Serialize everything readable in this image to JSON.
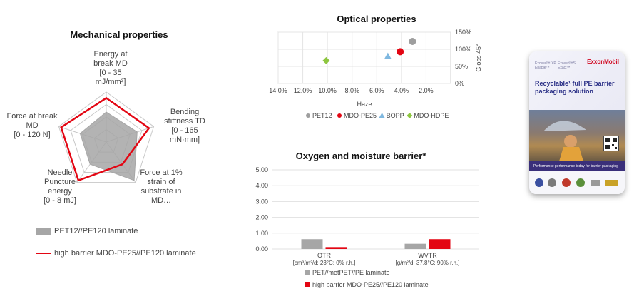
{
  "mechanical": {
    "title": "Mechanical properties",
    "axes": [
      "Energy at break MD [0 - 35 mJ/mm³]",
      "Bending stiffness TD [0 - 165 mN·mm]",
      "Force at 1% strain of substrate in MD...",
      "Needle Puncture energy [0 - 8 mJ]",
      "Force at break MD [0 - 120 N]"
    ],
    "axis_lines": [
      [
        "Energy at",
        "break MD",
        "[0 - 35",
        "mJ/mm³]"
      ],
      [
        "Bending",
        "stiffness TD",
        "[0 - 165",
        "mN·mm]"
      ],
      [
        "Force at 1%",
        "strain of",
        "substrate in",
        "MD…"
      ],
      [
        "Needle",
        "Puncture",
        "energy",
        "[0 - 8 mJ]"
      ],
      [
        "Force at break",
        "MD",
        "[0 - 120 N]"
      ]
    ],
    "legend": [
      "PET12//PE120 laminate",
      "high barrier MDO-PE25//PE120 laminate"
    ]
  },
  "optical": {
    "title": "Optical properties",
    "xlabel": "Haze",
    "ylabel": "Gloss 45°",
    "xticks": [
      "14.0%",
      "12.0%",
      "10.0%",
      "8.0%",
      "6.0%",
      "4.0%",
      "2.0%"
    ],
    "yticks": [
      "0%",
      "50%",
      "100%",
      "150%"
    ],
    "legend": [
      "PET12",
      "MDO-PE25",
      "BOPP",
      "MDO-HDPE"
    ]
  },
  "barrier": {
    "title": "Oxygen and moisture barrier*",
    "yticks": [
      "0.00",
      "1.00",
      "2.00",
      "3.00",
      "4.00",
      "5.00"
    ],
    "cat1": [
      "OTR",
      "[cm³/m²/d; 23°C; 0% r.h.]"
    ],
    "cat2": [
      "WVTR",
      "[g/m²/d; 37.8°C; 90% r.h.]"
    ],
    "legend": [
      "PET//metPET//PE laminate",
      "high barrier MDO-PE25//PE120 laminate"
    ]
  },
  "bag": {
    "brand": "ExxonMobil",
    "tag1": [
      "Exceed™ XP",
      "Enable™"
    ],
    "tag2": [
      "Exceed™S",
      "Exact™"
    ],
    "headline": "Recyclable¹ full PE barrier packaging solution",
    "stripe": "Performance performance today for barrier packaging"
  },
  "colors": {
    "grey": "#a6a6a6",
    "red": "#e30613",
    "pet12": "#9e9e9e",
    "mdo": "#e30613",
    "bopp": "#7fb8e0",
    "hdpe": "#8dc63f"
  },
  "chart_data": [
    {
      "type": "radar",
      "title": "Mechanical properties",
      "axes": [
        "Energy at break MD [0 - 35 mJ/mm³]",
        "Bending stiffness TD [0 - 165 mN·mm]",
        "Force at 1% strain of substrate in MD...",
        "Needle Puncture energy [0 - 8 mJ]",
        "Force at break MD [0 - 120 N]"
      ],
      "max": 1,
      "series": [
        {
          "name": "PET12//PE120 laminate",
          "values": [
            0.6,
            0.65,
            0.95,
            0.55,
            0.55
          ],
          "color": "#a6a6a6"
        },
        {
          "name": "high barrier MDO-PE25//PE120 laminate",
          "values": [
            0.88,
            0.9,
            0.55,
            0.95,
            0.95
          ],
          "color": "#e30613"
        }
      ]
    },
    {
      "type": "scatter",
      "title": "Optical properties",
      "xlabel": "Haze",
      "ylabel": "Gloss 45°",
      "xlim": [
        14,
        0
      ],
      "ylim": [
        0,
        150
      ],
      "x_reversed": true,
      "series": [
        {
          "name": "PET12",
          "x": [
            3.1
          ],
          "y": [
            123
          ],
          "color": "#9e9e9e",
          "marker": "circle"
        },
        {
          "name": "MDO-PE25",
          "x": [
            4.1
          ],
          "y": [
            93
          ],
          "color": "#e30613",
          "marker": "circle"
        },
        {
          "name": "BOPP",
          "x": [
            5.1
          ],
          "y": [
            80
          ],
          "color": "#7fb8e0",
          "marker": "triangle"
        },
        {
          "name": "MDO-HDPE",
          "x": [
            10.1
          ],
          "y": [
            67
          ],
          "color": "#8dc63f",
          "marker": "diamond"
        }
      ]
    },
    {
      "type": "bar",
      "title": "Oxygen and moisture barrier*",
      "categories": [
        "OTR [cm³/m²/d; 23°C; 0% r.h.]",
        "WVTR [g/m²/d; 37.8°C; 90% r.h.]"
      ],
      "ylim": [
        0,
        5
      ],
      "series": [
        {
          "name": "PET//metPET//PE laminate",
          "values": [
            0.62,
            0.33
          ],
          "color": "#a6a6a6"
        },
        {
          "name": "high barrier MDO-PE25//PE120 laminate",
          "values": [
            0.12,
            0.62
          ],
          "color": "#e30613"
        }
      ]
    }
  ]
}
